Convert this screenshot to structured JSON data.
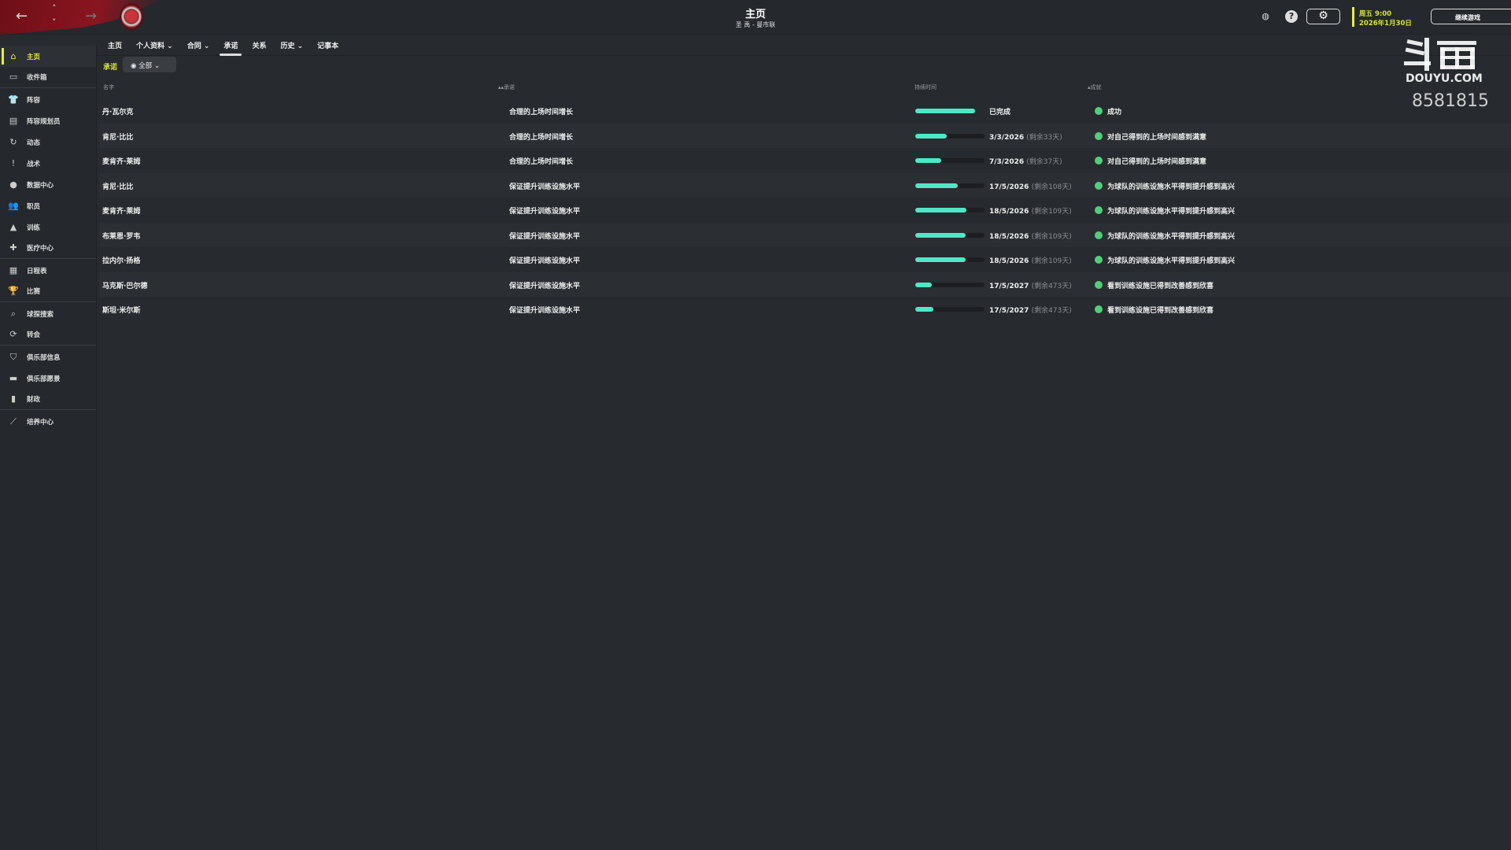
{
  "header": {
    "title": "主页",
    "subtitle": "圣 禹 - 曼市联",
    "date_line1": "周五 9:00",
    "date_line2": "2026年1月30日",
    "continue_label": "继续游戏",
    "accent": "#e6ef3a"
  },
  "watermark": {
    "logo": "斗鱼",
    "site": "DOUYU.COM",
    "room": "8581815"
  },
  "sidebar": {
    "items": [
      {
        "label": "主页",
        "icon": "home-icon",
        "active": true
      },
      {
        "label": "收件箱",
        "icon": "inbox-icon"
      },
      {
        "label": "阵容",
        "icon": "shirt-icon"
      },
      {
        "label": "阵容规划员",
        "icon": "clipboard-icon"
      },
      {
        "label": "动态",
        "icon": "dynamics-icon"
      },
      {
        "label": "战术",
        "icon": "tactics-icon"
      },
      {
        "label": "数据中心",
        "icon": "data-icon"
      },
      {
        "label": "职员",
        "icon": "staff-icon"
      },
      {
        "label": "训练",
        "icon": "training-icon"
      },
      {
        "label": "医疗中心",
        "icon": "medical-icon"
      },
      {
        "label": "日程表",
        "icon": "calendar-icon"
      },
      {
        "label": "比赛",
        "icon": "trophy-icon"
      },
      {
        "label": "球探搜索",
        "icon": "search-icon"
      },
      {
        "label": "转会",
        "icon": "transfer-icon"
      },
      {
        "label": "俱乐部信息",
        "icon": "shield-icon"
      },
      {
        "label": "俱乐部愿景",
        "icon": "briefcase-icon"
      },
      {
        "label": "财政",
        "icon": "money-icon"
      },
      {
        "label": "培养中心",
        "icon": "development-icon"
      }
    ]
  },
  "tabs": [
    {
      "label": "主页"
    },
    {
      "label": "个人资料",
      "dropdown": true
    },
    {
      "label": "合同",
      "dropdown": true
    },
    {
      "label": "承诺",
      "active": true
    },
    {
      "label": "关系"
    },
    {
      "label": "历史",
      "dropdown": true
    },
    {
      "label": "记事本"
    }
  ],
  "filter": {
    "label": "承诺",
    "value": "全部"
  },
  "table": {
    "headers": {
      "name": "名字",
      "promise": "▴▴承诺",
      "duration": "持续时间",
      "outcome": "▴成就"
    },
    "rows": [
      {
        "name": "丹·瓦尔克",
        "promise": "合理的上场时间增长",
        "progress": 100,
        "date": "已完成",
        "remaining": "",
        "outcome": "成功"
      },
      {
        "name": "肯尼·比比",
        "promise": "合理的上场时间增长",
        "progress": 45,
        "date": "3/3/2026",
        "remaining": "(剩余33天)",
        "outcome": "对自己得到的上场时间感到满意"
      },
      {
        "name": "麦肯齐·莱姆",
        "promise": "合理的上场时间增长",
        "progress": 38,
        "date": "7/3/2026",
        "remaining": "(剩余37天)",
        "outcome": "对自己得到的上场时间感到满意"
      },
      {
        "name": "肯尼·比比",
        "promise": "保证提升训练设施水平",
        "progress": 61,
        "date": "17/5/2026",
        "remaining": "(剩余108天)",
        "outcome": "为球队的训练设施水平得到提升感到高兴"
      },
      {
        "name": "麦肯齐·莱姆",
        "promise": "保证提升训练设施水平",
        "progress": 74,
        "date": "18/5/2026",
        "remaining": "(剩余109天)",
        "outcome": "为球队的训练设施水平得到提升感到高兴"
      },
      {
        "name": "布莱恩·罗韦",
        "promise": "保证提升训练设施水平",
        "progress": 73,
        "date": "18/5/2026",
        "remaining": "(剩余109天)",
        "outcome": "为球队的训练设施水平得到提升感到高兴"
      },
      {
        "name": "拉内尔·扬格",
        "promise": "保证提升训练设施水平",
        "progress": 73,
        "date": "18/5/2026",
        "remaining": "(剩余109天)",
        "outcome": "为球队的训练设施水平得到提升感到高兴"
      },
      {
        "name": "马克斯·巴尔德",
        "promise": "保证提升训练设施水平",
        "progress": 24,
        "date": "17/5/2027",
        "remaining": "(剩余473天)",
        "outcome": "看到训练设施已得到改善感到欣喜"
      },
      {
        "name": "斯坦·米尔斯",
        "promise": "保证提升训练设施水平",
        "progress": 26,
        "date": "17/5/2027",
        "remaining": "(剩余473天)",
        "outcome": "看到训练设施已得到改善感到欣喜"
      }
    ]
  }
}
